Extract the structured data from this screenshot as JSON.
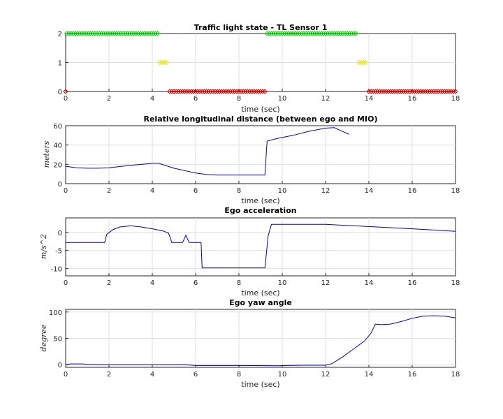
{
  "chart_data": [
    {
      "type": "scatter",
      "title": "Traffic light state - TL Sensor 1",
      "xlabel": "time (sec)",
      "ylabel": "",
      "xlim": [
        0,
        18
      ],
      "ylim": [
        0,
        2
      ],
      "xticks": [
        "0",
        "2",
        "4",
        "6",
        "8",
        "10",
        "12",
        "14",
        "16",
        "18"
      ],
      "yticks": [
        "0",
        "1",
        "2"
      ],
      "grid": true,
      "marker": "diamond",
      "series": [
        {
          "color": "#00dd00",
          "value": 2,
          "segments": [
            [
              0.05,
              4.25
            ],
            [
              9.3,
              13.4
            ]
          ]
        },
        {
          "color": "#e6e600",
          "value": 1,
          "segments": [
            [
              4.35,
              4.65
            ],
            [
              13.55,
              13.85
            ]
          ]
        },
        {
          "color": "#dd0000",
          "value": 0,
          "segments": [
            [
              0.0,
              0.0
            ],
            [
              4.8,
              9.2
            ],
            [
              14.0,
              18.0
            ]
          ]
        }
      ]
    },
    {
      "type": "line",
      "title": "Relative longitudinal distance (between ego and MIO)",
      "xlabel": "time (sec)",
      "ylabel": "meters",
      "xlim": [
        0,
        18
      ],
      "ylim": [
        0,
        60
      ],
      "xticks": [
        "0",
        "2",
        "4",
        "6",
        "8",
        "10",
        "12",
        "14",
        "16",
        "18"
      ],
      "yticks": [
        "0",
        "20",
        "40",
        "60"
      ],
      "grid": true,
      "color": "#0000cc",
      "x": [
        0,
        0.5,
        1,
        1.5,
        2,
        3,
        4,
        4.3,
        5,
        6,
        6.5,
        7,
        8,
        9.2,
        9.3,
        9.8,
        10.5,
        11.2,
        12,
        12.4,
        12.7,
        13.1
      ],
      "y": [
        18,
        16.5,
        16,
        16,
        16.5,
        19,
        21,
        21,
        16,
        11,
        9.5,
        9,
        9,
        9,
        44,
        47,
        50,
        54,
        57.5,
        58,
        55,
        51
      ]
    },
    {
      "type": "line",
      "title": "Ego acceleration",
      "xlabel": "time (sec)",
      "ylabel": "m/s^2",
      "xlim": [
        0,
        18
      ],
      "ylim": [
        -12,
        4
      ],
      "xticks": [
        "0",
        "2",
        "4",
        "6",
        "8",
        "10",
        "12",
        "14",
        "16",
        "18"
      ],
      "yticks": [
        "-10",
        "-5",
        "0"
      ],
      "grid": true,
      "color": "#0000cc",
      "x": [
        0,
        1.8,
        1.9,
        2.2,
        2.5,
        3,
        3.5,
        4,
        4.5,
        4.75,
        4.9,
        5,
        5.4,
        5.55,
        5.7,
        6.1,
        6.25,
        6.3,
        9.1,
        9.2,
        9.35,
        9.5,
        12,
        16,
        18
      ],
      "y": [
        -2.8,
        -2.8,
        -0.5,
        0.8,
        1.5,
        1.8,
        1.5,
        1,
        0.4,
        -0.2,
        -2.8,
        -2.8,
        -2.8,
        -0.8,
        -2.8,
        -2.8,
        -2.8,
        -9.8,
        -9.8,
        -9.8,
        -1,
        2.2,
        2.2,
        1,
        0.3
      ]
    },
    {
      "type": "line",
      "title": "Ego yaw angle",
      "xlabel": "time (sec)",
      "ylabel": "degree",
      "xlim": [
        0,
        18
      ],
      "ylim": [
        -5,
        105
      ],
      "xticks": [
        "0",
        "2",
        "4",
        "6",
        "8",
        "10",
        "12",
        "14",
        "16",
        "18"
      ],
      "yticks": [
        "0",
        "50",
        "100"
      ],
      "grid": true,
      "color": "#0000cc",
      "x": [
        0,
        0.2,
        0.8,
        1,
        2,
        4,
        5.5,
        6,
        8,
        9.8,
        10.2,
        11,
        12,
        12.3,
        12.8,
        13.3,
        13.8,
        14.1,
        14.3,
        14.6,
        15,
        15.5,
        16,
        16.5,
        17,
        17.5,
        18
      ],
      "y": [
        0,
        1.5,
        1.5,
        0.5,
        0,
        0,
        0,
        -1.5,
        -1.5,
        -2,
        -1.5,
        -1,
        -1,
        2,
        15,
        30,
        45,
        60,
        77,
        76,
        77,
        82,
        88,
        92,
        93,
        92,
        89
      ]
    }
  ]
}
